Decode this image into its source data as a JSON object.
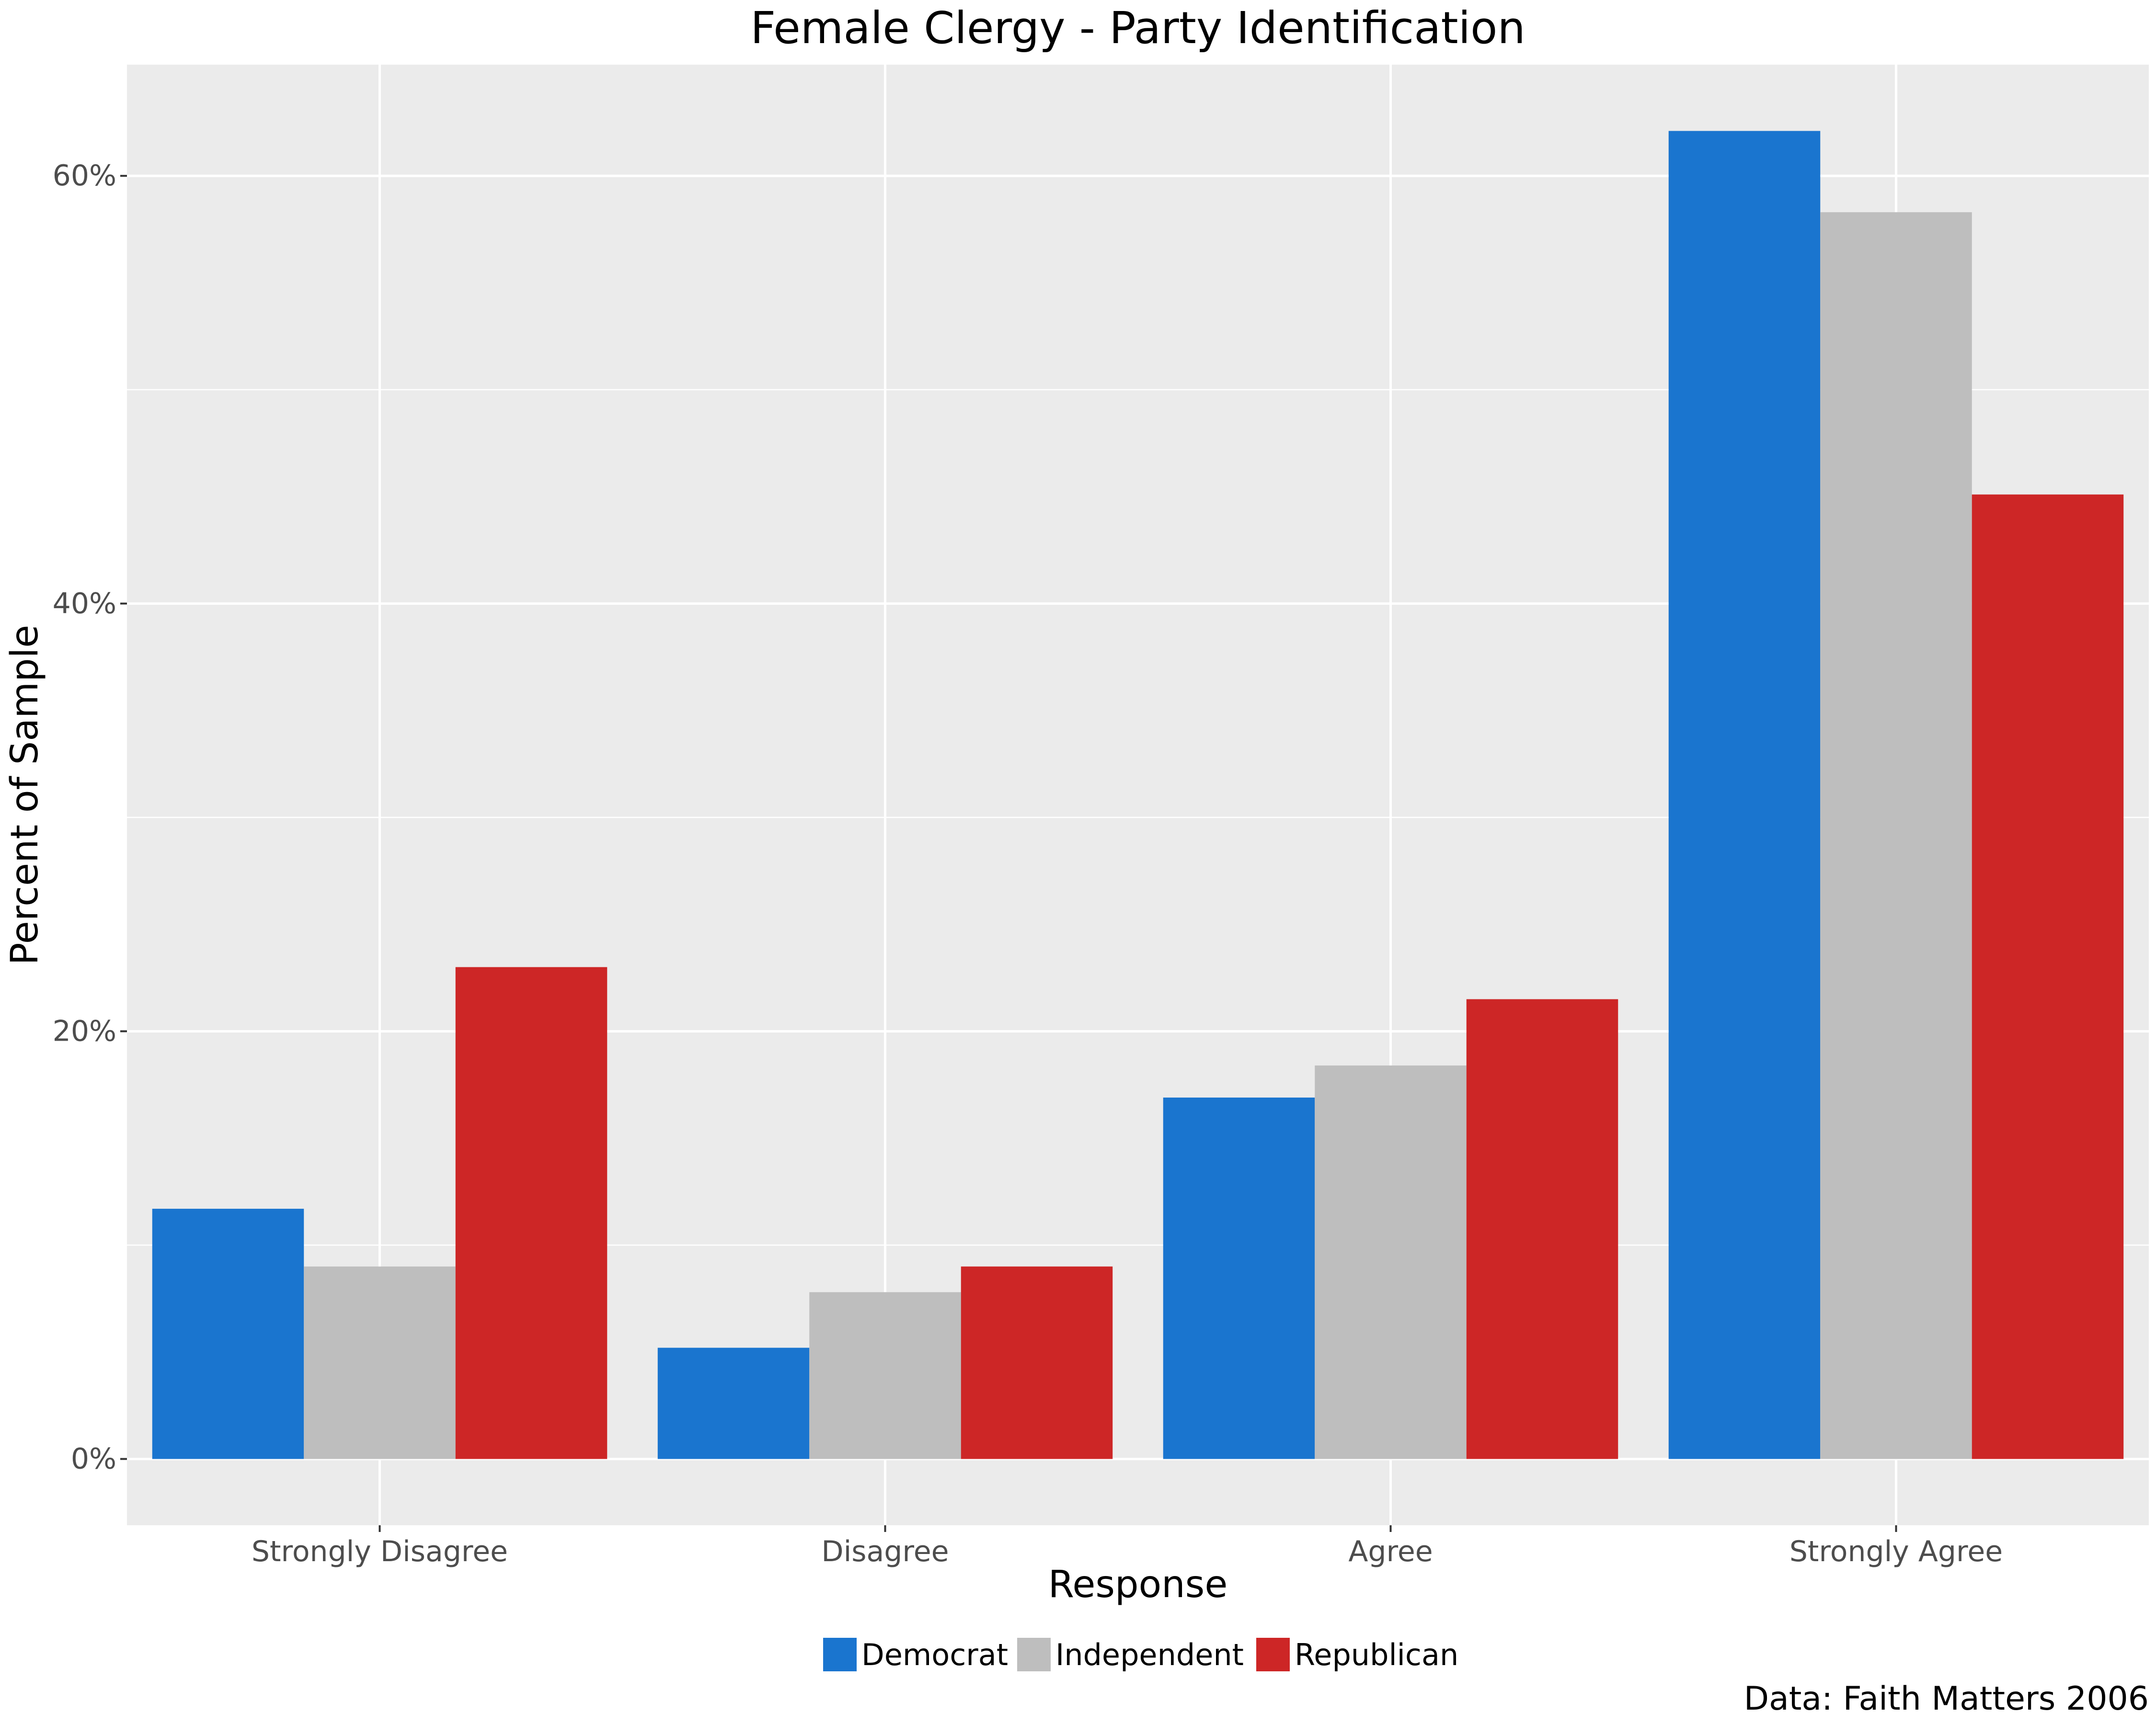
{
  "chart_data": {
    "type": "bar",
    "title": "Female Clergy - Party Identification",
    "xlabel": "Response",
    "ylabel": "Percent of Sample",
    "caption": "Data: Faith Matters 2006",
    "categories": [
      "Strongly Disagree",
      "Disagree",
      "Agree",
      "Strongly Agree"
    ],
    "series": [
      {
        "name": "Democrat",
        "color": "#1a75cf",
        "values": [
          11.7,
          5.2,
          16.9,
          62.1
        ]
      },
      {
        "name": "Independent",
        "color": "#bebebe",
        "values": [
          9.0,
          7.8,
          18.4,
          58.3
        ]
      },
      {
        "name": "Republican",
        "color": "#cd2626",
        "values": [
          23.0,
          9.0,
          21.5,
          45.1
        ]
      }
    ],
    "ylim": [
      -3.1,
      65.2
    ],
    "yticks": [
      0,
      20,
      40,
      60
    ],
    "ytick_labels": [
      "0%",
      "20%",
      "40%",
      "60%"
    ],
    "grid": true,
    "legend_position": "bottom",
    "panel_background": "#ebebeb"
  }
}
